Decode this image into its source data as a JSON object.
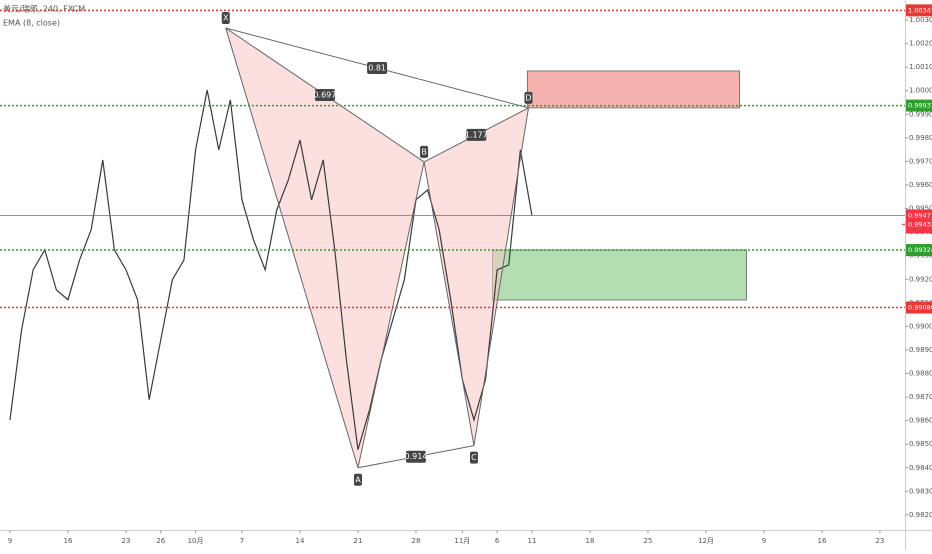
{
  "chart_data": {
    "type": "line",
    "header": [
      "美元/瑞郎, 240, FXCM",
      "EMA (8, close)"
    ],
    "x": [
      0,
      1,
      2,
      3,
      4,
      5,
      6,
      7,
      8,
      9,
      10,
      11,
      12,
      13,
      14,
      15,
      16,
      17,
      18,
      19,
      20,
      21,
      22,
      23,
      24,
      25,
      26,
      27,
      28,
      29,
      30,
      31,
      32,
      33,
      34,
      35,
      36,
      37,
      38,
      39,
      40,
      41,
      42,
      43,
      44,
      45
    ],
    "values": [
      0.98603,
      0.98985,
      0.9924,
      0.99325,
      0.99155,
      0.99113,
      0.99282,
      0.9941,
      0.99706,
      0.99325,
      0.9924,
      0.99113,
      0.98689,
      0.98943,
      0.99198,
      0.99282,
      0.99749,
      1.00003,
      0.99749,
      0.99961,
      0.99537,
      0.99367,
      0.9924,
      0.99494,
      0.99622,
      0.99791,
      0.99537,
      0.99706,
      0.99325,
      0.98858,
      0.98477,
      0.98646,
      0.98858,
      0.99028,
      0.99198,
      0.99537,
      0.99579,
      0.9941,
      0.99113,
      0.98774,
      0.98603,
      0.98774,
      0.9924,
      0.99261,
      0.99749,
      0.99471
    ],
    "color": "#3a3a3a",
    "xlim": [
      -0.86,
      77.16
    ],
    "ylim": [
      0.98136,
      1.00385
    ],
    "xticks": [
      {
        "value": 0,
        "label": "9"
      },
      {
        "value": 5,
        "label": "16"
      },
      {
        "value": 10,
        "label": "23"
      },
      {
        "value": 13,
        "label": "26"
      },
      {
        "value": 16,
        "label": "10月"
      },
      {
        "value": 20,
        "label": "7"
      },
      {
        "value": 25,
        "label": "14"
      },
      {
        "value": 30,
        "label": "21"
      },
      {
        "value": 35,
        "label": "28"
      },
      {
        "value": 39,
        "label": "11月"
      },
      {
        "value": 42,
        "label": "6"
      },
      {
        "value": 45,
        "label": "11"
      },
      {
        "value": 50,
        "label": "18"
      },
      {
        "value": 55,
        "label": "25"
      },
      {
        "value": 60,
        "label": "12月"
      },
      {
        "value": 65,
        "label": "9"
      },
      {
        "value": 70,
        "label": "16"
      },
      {
        "value": 75,
        "label": "23"
      }
    ],
    "yticks": [
      {
        "value": 0.982,
        "label": "0.98200"
      },
      {
        "value": 0.983,
        "label": "0.98300"
      },
      {
        "value": 0.984,
        "label": "0.98400"
      },
      {
        "value": 0.985,
        "label": "0.98500"
      },
      {
        "value": 0.986,
        "label": "0.98600"
      },
      {
        "value": 0.987,
        "label": "0.98700"
      },
      {
        "value": 0.988,
        "label": "0.98800"
      },
      {
        "value": 0.989,
        "label": "0.98900"
      },
      {
        "value": 0.99,
        "label": "0.99000"
      },
      {
        "value": 0.991,
        "label": "0.99100"
      },
      {
        "value": 0.992,
        "label": "0.99200"
      },
      {
        "value": 0.993,
        "label": "0.99300"
      },
      {
        "value": 0.994,
        "label": "0.99400"
      },
      {
        "value": 0.995,
        "label": "0.99500"
      },
      {
        "value": 0.996,
        "label": "0.99600"
      },
      {
        "value": 0.997,
        "label": "0.99700"
      },
      {
        "value": 0.998,
        "label": "0.99800"
      },
      {
        "value": 0.999,
        "label": "0.99900"
      },
      {
        "value": 1.0,
        "label": "1.00000"
      },
      {
        "value": 1.001,
        "label": "1.00100"
      },
      {
        "value": 1.002,
        "label": "1.00200"
      },
      {
        "value": 1.003,
        "label": "1.00300"
      }
    ],
    "pattern": {
      "points": [
        {
          "label": "X",
          "x": 18.6,
          "y": 1.00266
        },
        {
          "label": "A",
          "x": 30,
          "y": 0.984
        },
        {
          "label": "B",
          "x": 35.7,
          "y": 0.99698
        },
        {
          "label": "C",
          "x": 40,
          "y": 0.98494
        },
        {
          "label": "D",
          "x": 44.7,
          "y": 0.99927
        }
      ],
      "ratios": [
        "0.697",
        "1.177",
        "0.914",
        "0.81"
      ]
    },
    "levels": [
      {
        "value": 1.00341,
        "label": "1.00341",
        "color": "#e53935"
      },
      {
        "value": 0.99937,
        "label": "0.99937",
        "color": "#2e9e2e"
      },
      {
        "value": 0.99324,
        "label": "0.99324",
        "color": "#2e9e2e"
      },
      {
        "value": 0.9908,
        "label": "0.99080",
        "color": "#e53935"
      }
    ],
    "current": {
      "value": 0.99471,
      "label": "0.99471",
      "countdown": "01:35:06",
      "color": "#f23645"
    },
    "ema": {
      "value": 0.99433,
      "label": "0.99433",
      "color": "#f23645"
    },
    "boxes": [
      {
        "x0": 44.6,
        "x1": 62.9,
        "y0": 1.00084,
        "y1": 0.99927,
        "color": "#f5a5a0"
      },
      {
        "x0": 41.6,
        "x1": 63.5,
        "y0": 0.99324,
        "y1": 0.99112,
        "color": "#a5d8a5"
      }
    ]
  }
}
